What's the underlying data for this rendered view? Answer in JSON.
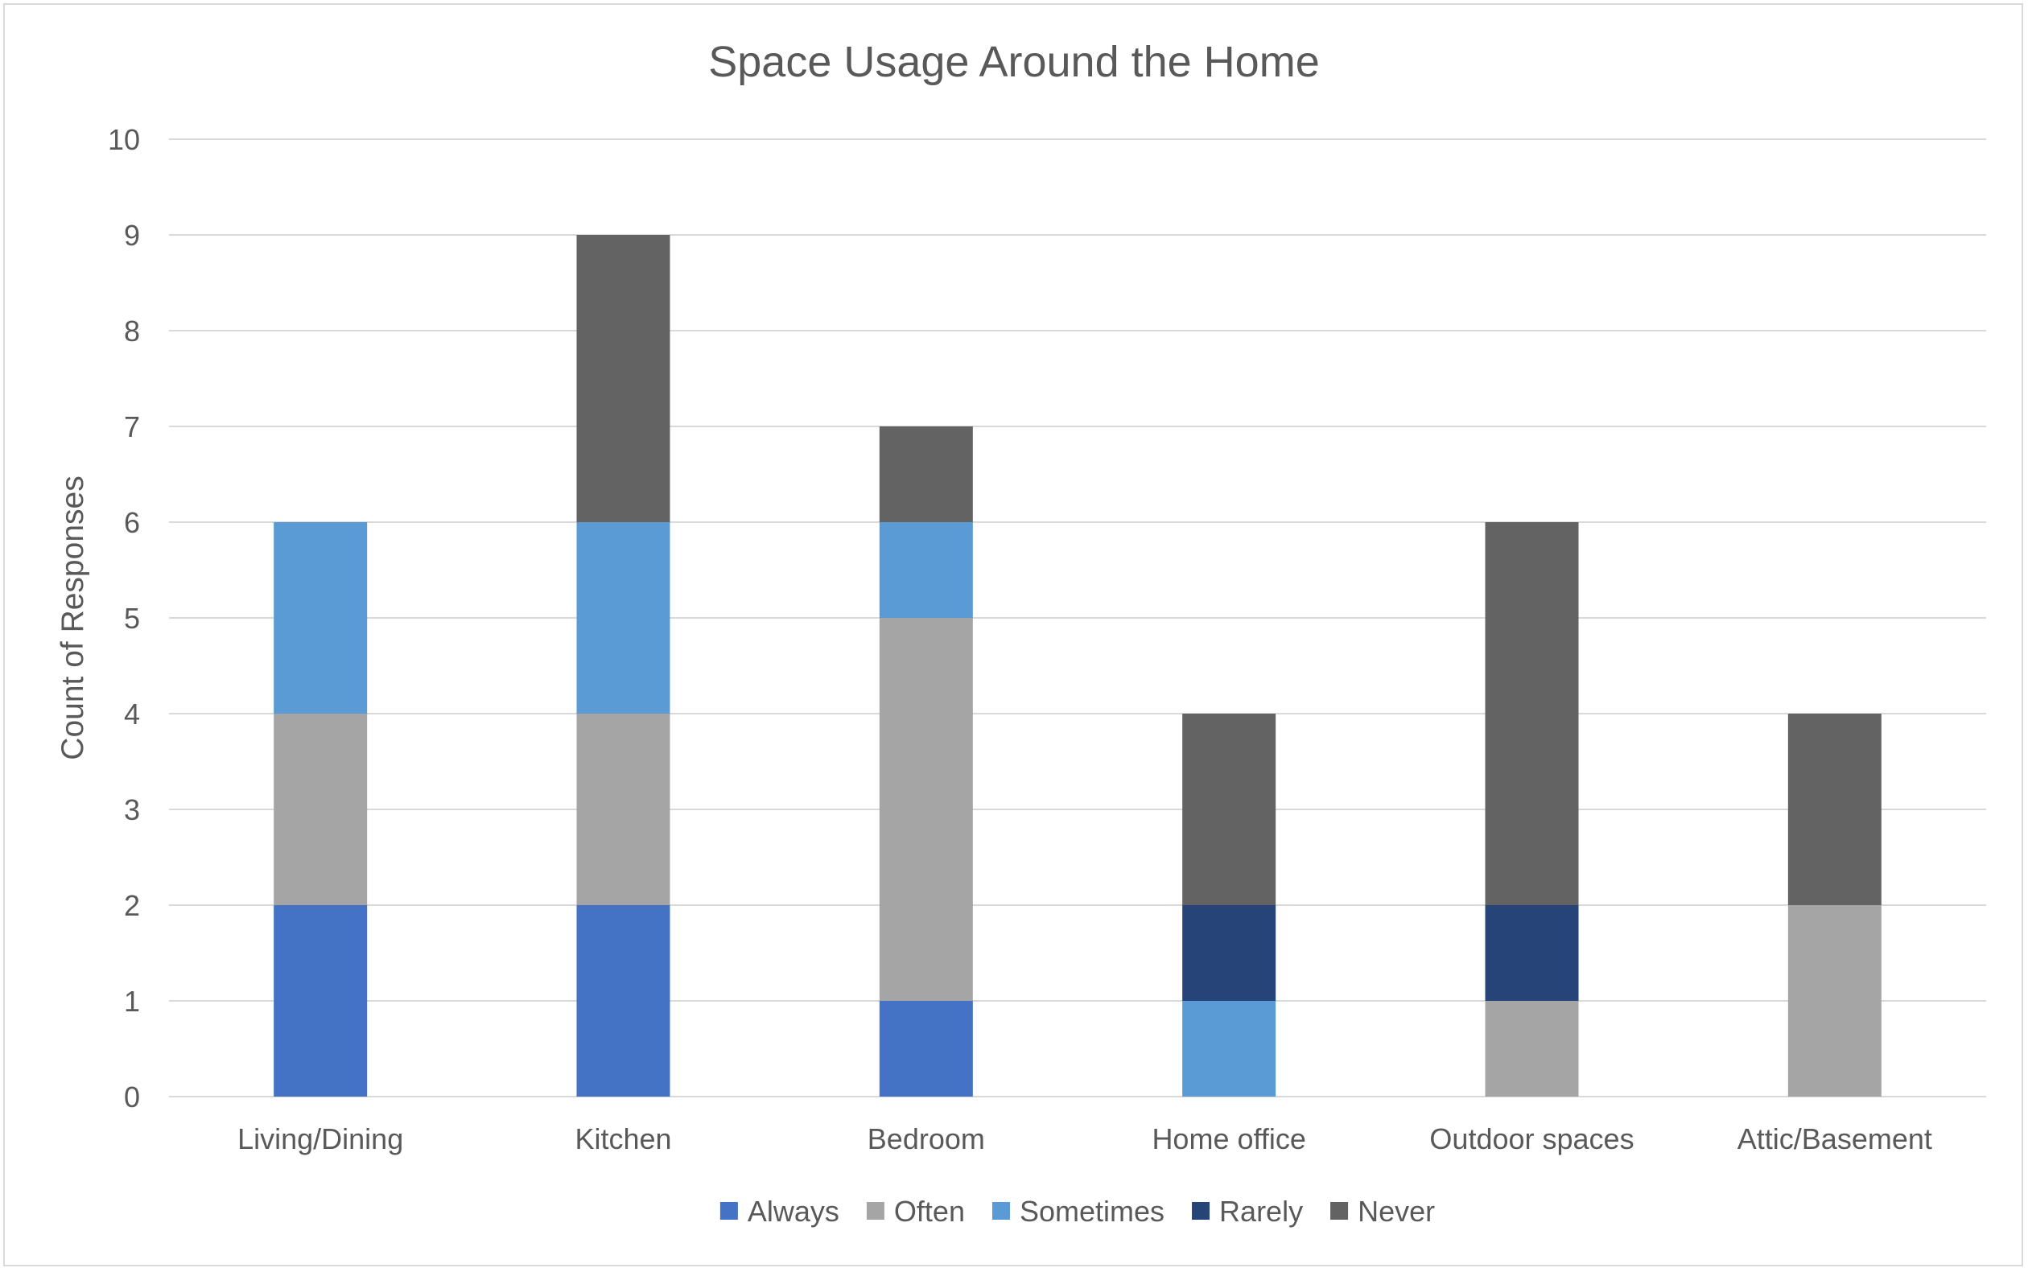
{
  "chart_data": {
    "type": "bar",
    "stacked": true,
    "title": "Space Usage Around the Home",
    "xlabel": "",
    "ylabel": "Count of Responses",
    "ylim": [
      0,
      10
    ],
    "yticks": [
      "0",
      "1",
      "2",
      "3",
      "4",
      "5",
      "6",
      "7",
      "8",
      "9",
      "10"
    ],
    "grid": true,
    "legend_position": "bottom",
    "categories": [
      "Living/Dining",
      "Kitchen",
      "Bedroom",
      "Home office",
      "Outdoor spaces",
      "Attic/Basement"
    ],
    "series": [
      {
        "name": "Always",
        "color": "#4472C4",
        "values": [
          2,
          2,
          1,
          0,
          0,
          0
        ]
      },
      {
        "name": "Often",
        "color": "#A5A5A5",
        "values": [
          2,
          2,
          4,
          0,
          1,
          2
        ]
      },
      {
        "name": "Sometimes",
        "color": "#5B9BD5",
        "values": [
          2,
          2,
          1,
          1,
          0,
          0
        ]
      },
      {
        "name": "Rarely",
        "color": "#264478",
        "values": [
          0,
          0,
          0,
          1,
          1,
          0
        ]
      },
      {
        "name": "Never",
        "color": "#636363",
        "values": [
          0,
          3,
          1,
          2,
          4,
          2
        ]
      }
    ]
  }
}
